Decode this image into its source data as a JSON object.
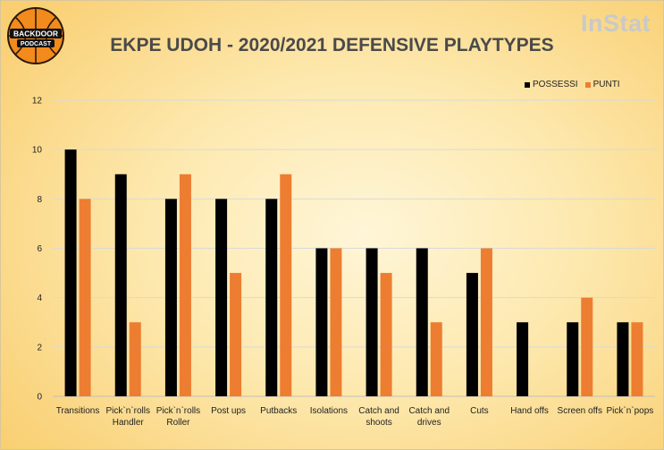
{
  "brand": "InStat",
  "logo": {
    "line1": "BACKDOOR",
    "line2": "PODCAST"
  },
  "colors": {
    "possessi": "#000000",
    "punti": "#ed7d31",
    "title": "#4a4a4a",
    "grid": "#d9d9d9"
  },
  "chart_data": {
    "type": "bar",
    "title": "EKPE UDOH - 2020/2021 DEFENSIVE PLAYTYPES",
    "xlabel": "",
    "ylabel": "",
    "ylim": [
      0,
      12
    ],
    "yticks": [
      0,
      2,
      4,
      6,
      8,
      10,
      12
    ],
    "grid": true,
    "legend_position": "top-right",
    "categories": [
      [
        "Transitions"
      ],
      [
        "Pick`n`rolls",
        "Handler"
      ],
      [
        "Pick`n`rolls",
        "Roller"
      ],
      [
        "Post ups"
      ],
      [
        "Putbacks"
      ],
      [
        "Isolations"
      ],
      [
        "Catch and",
        "shoots"
      ],
      [
        "Catch and",
        "drives"
      ],
      [
        "Cuts"
      ],
      [
        "Hand offs"
      ],
      [
        "Screen offs"
      ],
      [
        "Pick`n`pops"
      ]
    ],
    "series": [
      {
        "name": "POSSESSI",
        "values": [
          10,
          9,
          8,
          8,
          8,
          6,
          6,
          6,
          5,
          3,
          3,
          3
        ]
      },
      {
        "name": "PUNTI",
        "values": [
          8,
          3,
          9,
          5,
          9,
          6,
          5,
          3,
          6,
          0,
          4,
          3
        ]
      }
    ]
  }
}
